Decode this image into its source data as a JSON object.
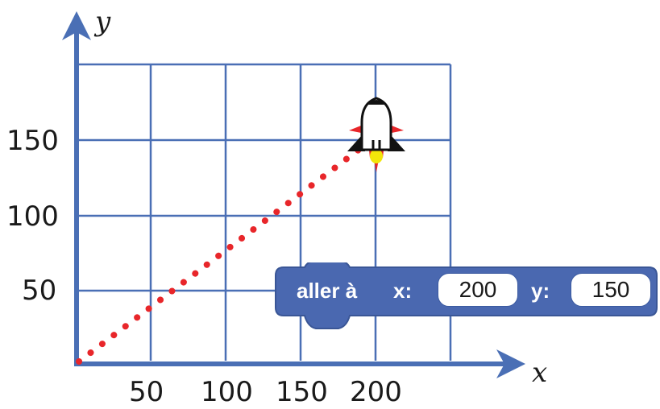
{
  "axes": {
    "x_label": "x",
    "y_label": "y",
    "x_ticks": [
      "50",
      "100",
      "150",
      "200"
    ],
    "y_ticks": [
      "50",
      "100",
      "150"
    ],
    "grid_color": "#4a6fb5"
  },
  "path": {
    "from": {
      "x": 0,
      "y": 0
    },
    "to": {
      "x": 200,
      "y": 150
    },
    "color": "#e8262a",
    "style": "dashed"
  },
  "sprite": {
    "icon": "rocket-icon",
    "x": 200,
    "y": 150
  },
  "block": {
    "label": "aller à",
    "x_label": "x:",
    "x_value": "200",
    "y_label": "y:",
    "y_value": "150",
    "color": "#4a68b0"
  }
}
